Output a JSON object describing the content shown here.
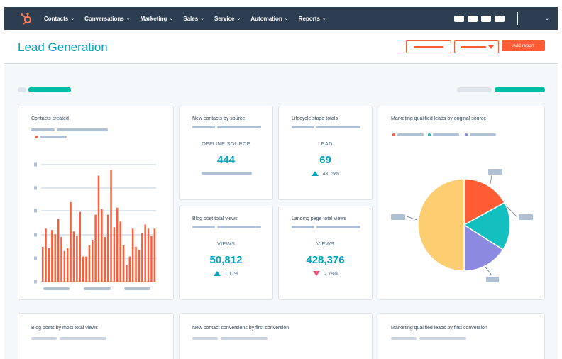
{
  "nav": {
    "items": [
      "Contacts",
      "Conversations",
      "Marketing",
      "Sales",
      "Service",
      "Automation",
      "Reports"
    ],
    "chevron": "⌄"
  },
  "header": {
    "title": "Lead Generation",
    "add_report_label": "Add report"
  },
  "cards": {
    "contacts_created": {
      "title": "Contacts created"
    },
    "new_contacts_by_source": {
      "title": "New contacts by source",
      "label": "OFFLINE SOURCE",
      "value": "444"
    },
    "lifecycle_stage_totals": {
      "title": "Lifecycle stage totals",
      "label": "LEAD",
      "value": "69",
      "change": "43.75%",
      "direction": "up"
    },
    "mql_by_original_source": {
      "title": "Marketing qualified leads by original source"
    },
    "blog_post_total_views": {
      "title": "Blog post total views",
      "label": "VIEWS",
      "value": "50,812",
      "change": "1.17%",
      "direction": "up"
    },
    "landing_page_total_views": {
      "title": "Landing page total views",
      "label": "VIEWS",
      "value": "428,376",
      "change": "2.78%",
      "direction": "down"
    },
    "blog_posts_most_views": {
      "title": "Blog posts by most total views"
    },
    "new_contact_conversions": {
      "title": "New contact conversions by first conversion"
    },
    "mql_first_conversion": {
      "title": "Marketing qualified leads by first conversion"
    }
  },
  "colors": {
    "nav_bg": "#2d3e50",
    "accent_teal": "#00a4bd",
    "accent_orange": "#ff5c35",
    "negative": "#f2547d",
    "pie_yellow": "#fdcd72",
    "pie_orange": "#ff5c35",
    "pie_teal": "#14bfbf",
    "pie_purple": "#8b89e0"
  },
  "chart_data": [
    {
      "type": "bar",
      "series": [
        {
          "values": [
            25,
            38,
            24,
            37,
            34,
            45,
            32,
            22,
            24,
            57,
            36,
            33,
            50,
            18,
            18,
            26,
            30,
            48,
            76,
            52,
            32,
            48,
            80,
            39,
            53,
            43,
            26,
            12,
            18,
            38,
            25,
            23,
            35,
            41,
            38,
            33,
            38
          ]
        }
      ],
      "ylim": [
        0,
        90
      ],
      "grid": true
    },
    {
      "type": "pie",
      "series": [
        {
          "values": [
            50,
            17,
            17,
            16
          ]
        }
      ],
      "colors": [
        "#fdcd72",
        "#ff5c35",
        "#14bfbf",
        "#8b89e0"
      ]
    }
  ]
}
